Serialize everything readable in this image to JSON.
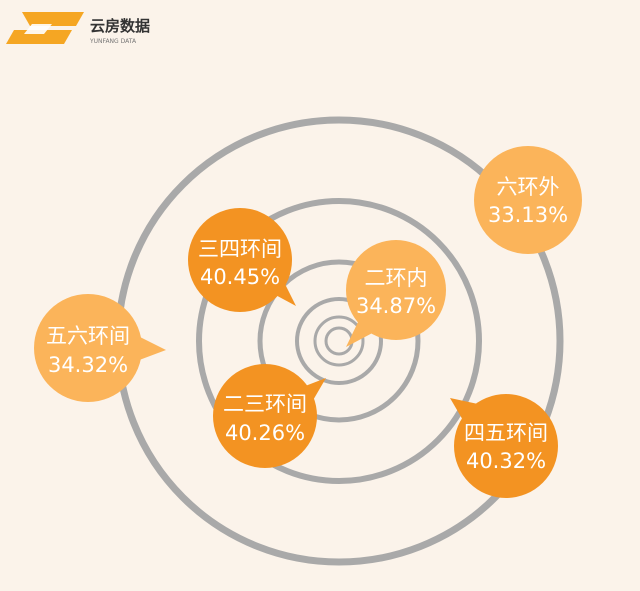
{
  "logo": {
    "name": "云房数据",
    "subtitle": "YUNFANG DATA",
    "icon": "yunfang-s-logo-icon",
    "colors": {
      "mark": "#f5a623",
      "text": "#333333"
    }
  },
  "colors": {
    "background": "#fbf3ea",
    "ring": "#a9a9a9",
    "bubble_light": "#fbb45a",
    "bubble_dark": "#f39322",
    "label_text": "#ffffff"
  },
  "zones": [
    {
      "id": "ring2-inner",
      "label": "二环内",
      "percent": "34.87%",
      "tone": "light"
    },
    {
      "id": "ring2-3",
      "label": "二三环间",
      "percent": "40.26%",
      "tone": "dark"
    },
    {
      "id": "ring3-4",
      "label": "三四环间",
      "percent": "40.45%",
      "tone": "dark"
    },
    {
      "id": "ring4-5",
      "label": "四五环间",
      "percent": "40.32%",
      "tone": "dark"
    },
    {
      "id": "ring5-6",
      "label": "五六环间",
      "percent": "34.32%",
      "tone": "light"
    },
    {
      "id": "ring6-outer",
      "label": "六环外",
      "percent": "33.13%",
      "tone": "light"
    }
  ]
}
